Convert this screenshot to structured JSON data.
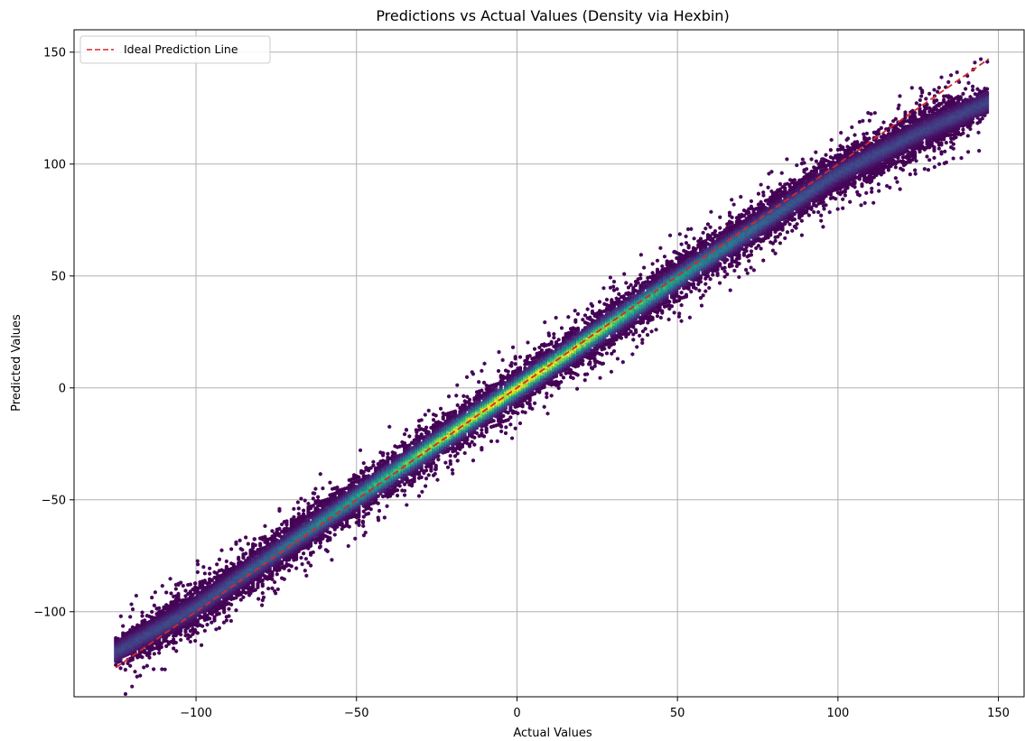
{
  "chart_data": {
    "type": "scatter",
    "subtype": "hexbin-density",
    "title": "Predictions vs Actual Values (Density via Hexbin)",
    "xlabel": "Actual Values",
    "ylabel": "Predicted Values",
    "xlim": [
      -138,
      158
    ],
    "ylim": [
      -138,
      160
    ],
    "x_ticks": [
      {
        "value": -100,
        "label": "−100"
      },
      {
        "value": -50,
        "label": "−50"
      },
      {
        "value": 0,
        "label": "0"
      },
      {
        "value": 50,
        "label": "50"
      },
      {
        "value": 100,
        "label": "100"
      },
      {
        "value": 150,
        "label": "150"
      }
    ],
    "y_ticks": [
      {
        "value": -100,
        "label": "−100"
      },
      {
        "value": -50,
        "label": "−50"
      },
      {
        "value": 0,
        "label": "0"
      },
      {
        "value": 50,
        "label": "50"
      },
      {
        "value": 100,
        "label": "100"
      },
      {
        "value": 150,
        "label": "150"
      }
    ],
    "grid": true,
    "colormap": "viridis",
    "density_band": {
      "x_range": [
        -125,
        147
      ],
      "center_line": [
        {
          "x": -125,
          "y": -118
        },
        {
          "x": -100,
          "y": -98
        },
        {
          "x": -50,
          "y": -49
        },
        {
          "x": 0,
          "y": 0
        },
        {
          "x": 50,
          "y": 49
        },
        {
          "x": 100,
          "y": 96
        },
        {
          "x": 125,
          "y": 114
        },
        {
          "x": 147,
          "y": 128
        }
      ],
      "half_width_core": 4,
      "half_width_outer": 12,
      "peak_density_x": 0
    },
    "ideal_line": {
      "name": "Ideal Prediction Line",
      "color": "#d62728",
      "style": "dashed",
      "points": [
        [
          -125,
          -125
        ],
        [
          147,
          147
        ]
      ]
    },
    "legend_position": "upper-left"
  }
}
